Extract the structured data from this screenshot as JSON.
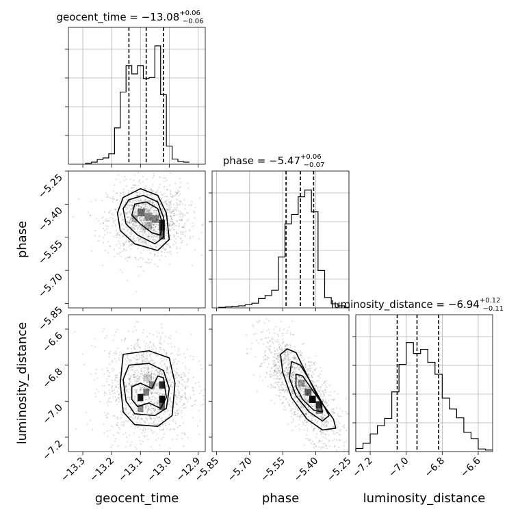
{
  "chart_data": {
    "type": "corner",
    "parameters": [
      {
        "name": "geocent_time",
        "label": "geocent_time",
        "title": {
          "prefix": "geocent_time = ",
          "median": "−13.08",
          "plus": "+0.06",
          "minus": "−0.06"
        },
        "range": [
          -13.35,
          -12.875
        ],
        "ticks": [
          -13.3,
          -13.2,
          -13.1,
          -13.0,
          -12.9
        ],
        "tick_labels": [
          "−13.3",
          "−13.2",
          "−13.1",
          "−13.0",
          "−12.9"
        ],
        "quantiles": [
          -13.14,
          -13.08,
          -13.02
        ],
        "hist_bins": [
          -13.35,
          -13.33,
          -13.31,
          -13.29,
          -13.27,
          -13.25,
          -13.23,
          -13.21,
          -13.19,
          -13.17,
          -13.15,
          -13.13,
          -13.11,
          -13.09,
          -13.07,
          -13.05,
          -13.03,
          -13.01,
          -12.99,
          -12.97,
          -12.95,
          -12.93,
          -12.91,
          -12.89
        ],
        "hist_counts": [
          2,
          4,
          9,
          12,
          20,
          70,
          139,
          190,
          174,
          190,
          165,
          167,
          228,
          134,
          35,
          10,
          5,
          4
        ],
        "hist_start_bin": 3,
        "hist_max": 232
      },
      {
        "name": "phase",
        "label": "phase",
        "title": {
          "prefix": "phase = ",
          "median": "−5.47",
          "plus": "+0.06",
          "minus": "−0.07"
        },
        "range": [
          -5.87,
          -5.25
        ],
        "ticks": [
          -5.85,
          -5.7,
          -5.55,
          -5.4,
          -5.25
        ],
        "tick_labels": [
          "−5.85",
          "−5.70",
          "−5.55",
          "−5.40",
          "−5.25"
        ],
        "quantiles": [
          -5.535,
          -5.47,
          -5.41
        ],
        "hist_bins": [
          -5.87,
          -5.84,
          -5.81,
          -5.78,
          -5.75,
          -5.72,
          -5.69,
          -5.66,
          -5.63,
          -5.6,
          -5.57,
          -5.54,
          -5.51,
          -5.48,
          -5.45,
          -5.42,
          -5.39,
          -5.36,
          -5.33,
          -5.3,
          -5.27,
          -5.25
        ],
        "hist_counts": [
          1,
          2,
          3,
          4,
          6,
          9,
          18,
          24,
          34,
          98,
          162,
          180,
          214,
          227,
          185,
          72,
          20,
          8,
          4,
          1
        ],
        "hist_start_bin": 1,
        "hist_max": 232
      },
      {
        "name": "luminosity_distance",
        "label": "luminosity_distance",
        "title": {
          "prefix": "luminosity_distance = ",
          "median": "−6.94",
          "plus": "+0.12",
          "minus": "−0.11"
        },
        "range": [
          -7.28,
          -6.52
        ],
        "ticks": [
          -7.2,
          -7.0,
          -6.8,
          -6.6
        ],
        "tick_labels": [
          "−7.2",
          "−7.0",
          "−6.8",
          "−6.6"
        ],
        "quantiles": [
          -7.05,
          -6.94,
          -6.82
        ],
        "hist_bins": [
          -7.28,
          -7.24,
          -7.2,
          -7.16,
          -7.12,
          -7.08,
          -7.04,
          -7.0,
          -6.96,
          -6.92,
          -6.88,
          -6.84,
          -6.8,
          -6.76,
          -6.72,
          -6.68,
          -6.64,
          -6.6,
          -6.56,
          -6.52
        ],
        "hist_counts": [
          6,
          16,
          34,
          50,
          64,
          115,
          168,
          210,
          189,
          197,
          172,
          149,
          103,
          82,
          65,
          37,
          25,
          5,
          3
        ],
        "hist_start_bin": 0,
        "hist_max": 232
      }
    ],
    "pairs": [
      {
        "x_param": 0,
        "y_param": 1,
        "center": [
          -13.075,
          -5.47
        ],
        "sd": [
          0.055,
          0.065
        ],
        "cells": [
          {
            "x": -13.11,
            "y": -5.42,
            "w": 0.025,
            "h": 0.035,
            "v": 0.55
          },
          {
            "x": -13.085,
            "y": -5.44,
            "w": 0.025,
            "h": 0.035,
            "v": 0.4
          },
          {
            "x": -13.06,
            "y": -5.45,
            "w": 0.025,
            "h": 0.035,
            "v": 0.45
          },
          {
            "x": -13.035,
            "y": -5.47,
            "w": 0.02,
            "h": 0.05,
            "v": 0.85
          },
          {
            "x": -13.035,
            "y": -5.52,
            "w": 0.02,
            "h": 0.04,
            "v": 0.6
          },
          {
            "x": -13.13,
            "y": -5.45,
            "w": 0.02,
            "h": 0.03,
            "v": 0.3
          },
          {
            "x": -13.085,
            "y": -5.48,
            "w": 0.025,
            "h": 0.035,
            "v": 0.25
          }
        ],
        "contours": [
          [
            [
              -13.16,
              -5.37
            ],
            [
              -13.1,
              -5.33
            ],
            [
              -13.04,
              -5.36
            ],
            [
              -13.01,
              -5.44
            ],
            [
              -13.0,
              -5.56
            ],
            [
              -13.04,
              -5.61
            ],
            [
              -13.12,
              -5.58
            ],
            [
              -13.17,
              -5.52
            ],
            [
              -13.18,
              -5.44
            ]
          ],
          [
            [
              -13.14,
              -5.38
            ],
            [
              -13.09,
              -5.36
            ],
            [
              -13.04,
              -5.39
            ],
            [
              -13.02,
              -5.46
            ],
            [
              -13.02,
              -5.55
            ],
            [
              -13.05,
              -5.58
            ],
            [
              -13.11,
              -5.54
            ],
            [
              -13.15,
              -5.49
            ],
            [
              -13.16,
              -5.42
            ]
          ],
          [
            [
              -13.12,
              -5.4
            ],
            [
              -13.08,
              -5.39
            ],
            [
              -13.04,
              -5.42
            ],
            [
              -13.025,
              -5.48
            ],
            [
              -13.03,
              -5.54
            ],
            [
              -13.06,
              -5.53
            ],
            [
              -13.1,
              -5.49
            ],
            [
              -13.13,
              -5.45
            ]
          ]
        ]
      },
      {
        "x_param": 0,
        "y_param": 2,
        "center": [
          -13.075,
          -6.93
        ],
        "sd": [
          0.06,
          0.12
        ],
        "cells": [
          {
            "x": -13.11,
            "y": -6.96,
            "w": 0.02,
            "h": 0.04,
            "v": 0.9
          },
          {
            "x": -13.09,
            "y": -6.93,
            "w": 0.02,
            "h": 0.04,
            "v": 0.5
          },
          {
            "x": -13.07,
            "y": -6.89,
            "w": 0.02,
            "h": 0.04,
            "v": 0.45
          },
          {
            "x": -13.035,
            "y": -6.89,
            "w": 0.02,
            "h": 0.04,
            "v": 0.85
          },
          {
            "x": -13.035,
            "y": -6.97,
            "w": 0.02,
            "h": 0.04,
            "v": 0.95
          },
          {
            "x": -13.035,
            "y": -7.01,
            "w": 0.02,
            "h": 0.04,
            "v": 0.6
          },
          {
            "x": -13.11,
            "y": -7.02,
            "w": 0.02,
            "h": 0.04,
            "v": 0.45
          },
          {
            "x": -13.09,
            "y": -6.85,
            "w": 0.03,
            "h": 0.04,
            "v": 0.2
          }
        ],
        "contours": [
          [
            [
              -13.16,
              -6.74
            ],
            [
              -13.07,
              -6.72
            ],
            [
              -13.0,
              -6.76
            ],
            [
              -12.98,
              -6.9
            ],
            [
              -12.99,
              -7.08
            ],
            [
              -13.04,
              -7.14
            ],
            [
              -13.12,
              -7.13
            ],
            [
              -13.16,
              -7.06
            ],
            [
              -13.17,
              -6.9
            ]
          ],
          [
            [
              -13.14,
              -6.8
            ],
            [
              -13.07,
              -6.79
            ],
            [
              -13.02,
              -6.83
            ],
            [
              -13.0,
              -6.93
            ],
            [
              -13.01,
              -7.04
            ],
            [
              -13.05,
              -7.08
            ],
            [
              -13.12,
              -7.07
            ],
            [
              -13.15,
              -7.0
            ],
            [
              -13.16,
              -6.88
            ]
          ],
          [
            [
              -13.13,
              -6.92
            ],
            [
              -13.1,
              -6.9
            ],
            [
              -13.06,
              -6.93
            ],
            [
              -13.04,
              -6.86
            ],
            [
              -13.02,
              -6.87
            ],
            [
              -13.01,
              -6.98
            ],
            [
              -13.03,
              -7.04
            ],
            [
              -13.07,
              -7.01
            ],
            [
              -13.11,
              -7.03
            ],
            [
              -13.13,
              -6.99
            ]
          ]
        ]
      },
      {
        "x_param": 1,
        "y_param": 2,
        "center": [
          -5.47,
          -6.93
        ],
        "sd": [
          0.07,
          0.12
        ],
        "corr": 0.75,
        "cells": [
          {
            "x": -5.45,
            "y": -6.93,
            "w": 0.03,
            "h": 0.04,
            "v": 0.6
          },
          {
            "x": -5.43,
            "y": -6.97,
            "w": 0.03,
            "h": 0.04,
            "v": 0.95
          },
          {
            "x": -5.4,
            "y": -7.0,
            "w": 0.03,
            "h": 0.04,
            "v": 0.8
          },
          {
            "x": -5.48,
            "y": -6.88,
            "w": 0.03,
            "h": 0.04,
            "v": 0.35
          },
          {
            "x": -5.4,
            "y": -7.04,
            "w": 0.03,
            "h": 0.03,
            "v": 0.5
          }
        ],
        "contours": [
          [
            [
              -5.53,
              -6.71
            ],
            [
              -5.49,
              -6.73
            ],
            [
              -5.45,
              -6.83
            ],
            [
              -5.39,
              -6.98
            ],
            [
              -5.32,
              -7.1
            ],
            [
              -5.31,
              -7.15
            ],
            [
              -5.37,
              -7.16
            ],
            [
              -5.44,
              -7.1
            ],
            [
              -5.51,
              -6.98
            ],
            [
              -5.55,
              -6.84
            ],
            [
              -5.56,
              -6.74
            ]
          ],
          [
            [
              -5.51,
              -6.78
            ],
            [
              -5.47,
              -6.8
            ],
            [
              -5.43,
              -6.88
            ],
            [
              -5.38,
              -6.99
            ],
            [
              -5.34,
              -7.08
            ],
            [
              -5.37,
              -7.11
            ],
            [
              -5.43,
              -7.06
            ],
            [
              -5.49,
              -6.97
            ],
            [
              -5.52,
              -6.87
            ]
          ],
          [
            [
              -5.49,
              -6.85
            ],
            [
              -5.46,
              -6.86
            ],
            [
              -5.42,
              -6.93
            ],
            [
              -5.38,
              -7.0
            ],
            [
              -5.37,
              -7.06
            ],
            [
              -5.41,
              -7.05
            ],
            [
              -5.46,
              -6.99
            ],
            [
              -5.49,
              -6.92
            ]
          ]
        ]
      }
    ],
    "grid": true
  }
}
